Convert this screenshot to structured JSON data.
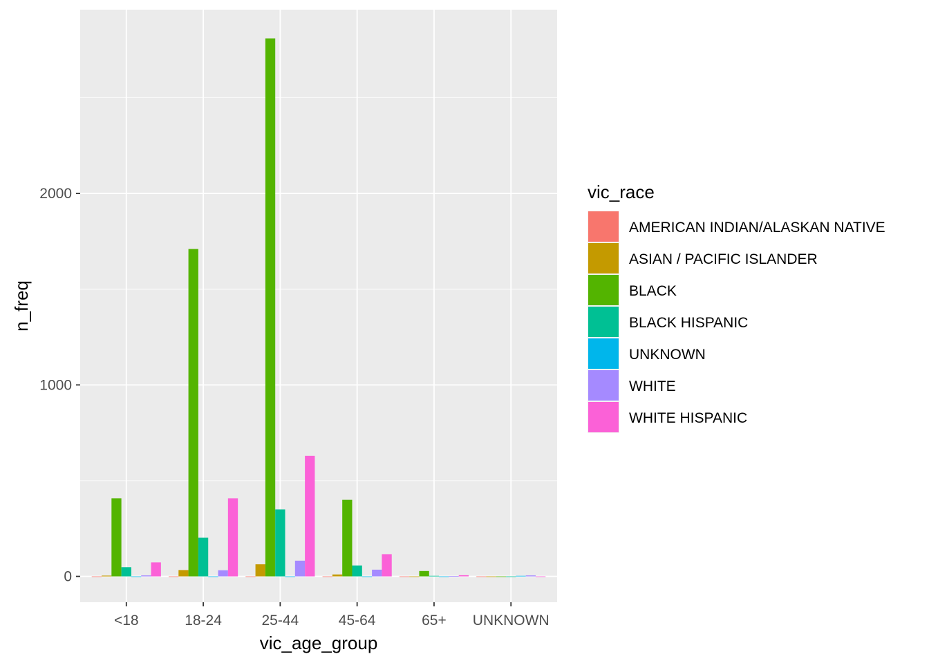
{
  "chart_data": {
    "type": "bar",
    "xlabel": "vic_age_group",
    "ylabel": "n_freq",
    "categories": [
      "<18",
      "18-24",
      "25-44",
      "45-64",
      "65+",
      "UNKNOWN"
    ],
    "ylim": [
      -135,
      2960
    ],
    "yticks": [
      0,
      1000,
      2000
    ],
    "grid": true,
    "legend": {
      "title": "vic_race",
      "placement": "right"
    },
    "series": [
      {
        "name": "AMERICAN INDIAN/ALASKAN NATIVE",
        "color": "#F8766D",
        "values": [
          0,
          0,
          0,
          0,
          0,
          0
        ]
      },
      {
        "name": "ASIAN / PACIFIC ISLANDER",
        "color": "#C49A00",
        "values": [
          4,
          33,
          63,
          10,
          0,
          0
        ]
      },
      {
        "name": "BLACK",
        "color": "#53B400",
        "values": [
          408,
          1710,
          2810,
          400,
          28,
          0
        ]
      },
      {
        "name": "BLACK HISPANIC",
        "color": "#00C094",
        "values": [
          48,
          202,
          350,
          57,
          3,
          0
        ]
      },
      {
        "name": "UNKNOWN",
        "color": "#00B6EB",
        "values": [
          0,
          0,
          0,
          0,
          0,
          3
        ]
      },
      {
        "name": "WHITE",
        "color": "#A58AFF",
        "values": [
          5,
          32,
          82,
          35,
          2,
          5
        ]
      },
      {
        "name": "WHITE HISPANIC",
        "color": "#FB61D7",
        "values": [
          73,
          408,
          630,
          116,
          6,
          0
        ]
      }
    ]
  }
}
